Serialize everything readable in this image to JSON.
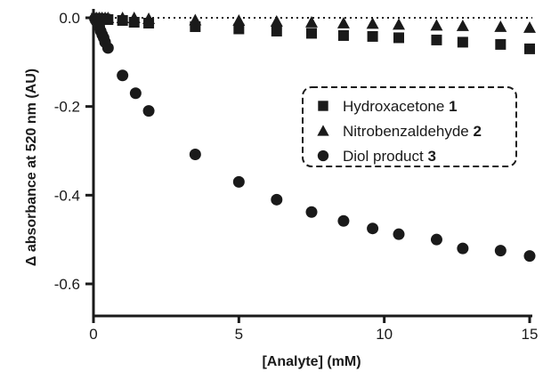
{
  "chart_data": {
    "type": "scatter",
    "title": "",
    "xlabel": "[Analyte] (mM)",
    "ylabel": "Δ absorbance at 520 nm (AU)",
    "xlim": [
      0,
      15
    ],
    "ylim": [
      -0.65,
      0
    ],
    "xticks": [
      0,
      5,
      10,
      15
    ],
    "xtick_labels": [
      "0",
      "5",
      "10",
      "15"
    ],
    "yticks": [
      0.0,
      -0.2,
      -0.4,
      -0.6
    ],
    "ytick_labels": [
      "0.0",
      "-0.2",
      "-0.4",
      "-0.6"
    ],
    "grid": false,
    "reference_line": {
      "y": 0,
      "style": "dotted"
    },
    "legend": {
      "placement": "right",
      "border": "dashed"
    },
    "series": [
      {
        "name": "Hydroxacetone",
        "name_bold": "1",
        "marker": "square",
        "color": "#1a1a1a",
        "x": [
          0.1,
          0.2,
          0.3,
          0.4,
          0.5,
          1.0,
          1.4,
          1.9,
          3.5,
          5.0,
          6.3,
          7.5,
          8.6,
          9.6,
          10.5,
          11.8,
          12.7,
          14.0,
          15.0
        ],
        "y": [
          -0.001,
          -0.002,
          -0.002,
          -0.003,
          -0.004,
          -0.006,
          -0.01,
          -0.012,
          -0.02,
          -0.025,
          -0.03,
          -0.035,
          -0.04,
          -0.042,
          -0.045,
          -0.05,
          -0.055,
          -0.06,
          -0.07
        ]
      },
      {
        "name": "Nitrobenzaldehyde",
        "name_bold": "2",
        "marker": "triangle",
        "color": "#1a1a1a",
        "x": [
          0.1,
          0.2,
          0.3,
          0.4,
          0.5,
          1.0,
          1.4,
          1.9,
          3.5,
          5.0,
          6.3,
          7.5,
          8.6,
          9.6,
          10.5,
          11.8,
          12.7,
          14.0,
          15.0
        ],
        "y": [
          0.0,
          0.0,
          0.0,
          0.0,
          0.0,
          0.0,
          0.0,
          -0.002,
          -0.005,
          -0.006,
          -0.008,
          -0.01,
          -0.012,
          -0.013,
          -0.015,
          -0.017,
          -0.018,
          -0.02,
          -0.022
        ]
      },
      {
        "name": "Diol product",
        "name_bold": "3",
        "marker": "circle",
        "color": "#1a1a1a",
        "x": [
          0.05,
          0.1,
          0.15,
          0.2,
          0.25,
          0.3,
          0.35,
          0.4,
          0.5,
          1.0,
          1.45,
          1.9,
          3.5,
          5.0,
          6.3,
          7.5,
          8.6,
          9.6,
          10.5,
          11.8,
          12.7,
          14.0,
          15.0
        ],
        "y": [
          -0.002,
          -0.008,
          -0.015,
          -0.02,
          -0.03,
          -0.038,
          -0.045,
          -0.055,
          -0.068,
          -0.13,
          -0.17,
          -0.21,
          -0.308,
          -0.37,
          -0.41,
          -0.438,
          -0.458,
          -0.475,
          -0.488,
          -0.5,
          -0.52,
          -0.525,
          -0.537
        ]
      }
    ]
  }
}
